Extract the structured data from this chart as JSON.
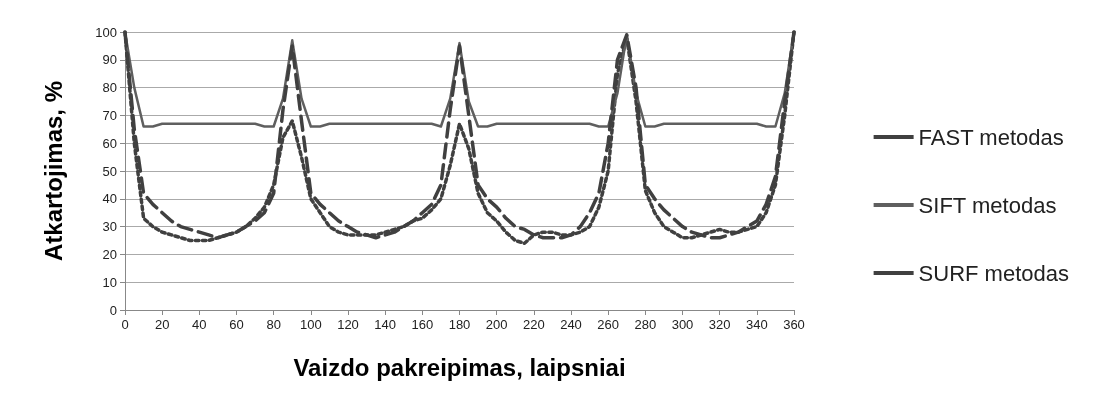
{
  "chart_data": {
    "type": "line",
    "xlabel": "Vaizdo pakreipimas, laipsniai",
    "ylabel": "Atkartojimas, %",
    "x": [
      0,
      5,
      10,
      15,
      20,
      25,
      30,
      35,
      40,
      45,
      50,
      55,
      60,
      65,
      70,
      75,
      80,
      85,
      90,
      95,
      100,
      105,
      110,
      115,
      120,
      125,
      130,
      135,
      140,
      145,
      150,
      155,
      160,
      165,
      170,
      175,
      180,
      185,
      190,
      195,
      200,
      205,
      210,
      215,
      220,
      225,
      230,
      235,
      240,
      245,
      250,
      255,
      260,
      265,
      270,
      275,
      280,
      285,
      290,
      295,
      300,
      305,
      310,
      315,
      320,
      325,
      330,
      335,
      340,
      345,
      350,
      355,
      360
    ],
    "series": [
      {
        "name": "FAST metodas",
        "color": "#404040",
        "line_style": "dotted",
        "values": [
          100,
          60,
          33,
          30,
          28,
          27,
          26,
          25,
          25,
          25,
          26,
          27,
          28,
          30,
          33,
          37,
          45,
          62,
          68,
          55,
          40,
          35,
          30,
          28,
          27,
          27,
          27,
          27,
          28,
          29,
          30,
          32,
          33,
          36,
          40,
          52,
          67,
          58,
          42,
          35,
          32,
          28,
          25,
          24,
          27,
          28,
          28,
          27,
          27,
          28,
          30,
          37,
          50,
          85,
          98,
          75,
          43,
          35,
          30,
          28,
          26,
          26,
          27,
          28,
          29,
          28,
          28,
          29,
          30,
          35,
          45,
          70,
          100
        ]
      },
      {
        "name": "SIFT metodas",
        "color": "#5f5f5f",
        "line_style": "solid",
        "values": [
          100,
          80,
          66,
          66,
          67,
          67,
          67,
          67,
          67,
          67,
          67,
          67,
          67,
          67,
          67,
          66,
          66,
          76,
          97,
          76,
          66,
          66,
          67,
          67,
          67,
          67,
          67,
          67,
          67,
          67,
          67,
          67,
          67,
          67,
          66,
          76,
          96,
          75,
          66,
          66,
          67,
          67,
          67,
          67,
          67,
          67,
          67,
          67,
          67,
          67,
          67,
          66,
          66,
          78,
          99,
          78,
          66,
          66,
          67,
          67,
          67,
          67,
          67,
          67,
          67,
          67,
          67,
          67,
          67,
          66,
          66,
          78,
          100
        ]
      },
      {
        "name": "SURF metodas",
        "color": "#404040",
        "line_style": "dashed",
        "values": [
          100,
          65,
          42,
          38,
          35,
          32,
          30,
          29,
          28,
          27,
          26,
          27,
          28,
          30,
          32,
          35,
          42,
          72,
          95,
          68,
          42,
          38,
          35,
          32,
          30,
          28,
          27,
          26,
          27,
          28,
          30,
          32,
          35,
          38,
          45,
          72,
          95,
          70,
          45,
          40,
          37,
          33,
          30,
          29,
          27,
          26,
          26,
          26,
          27,
          30,
          35,
          42,
          60,
          90,
          99,
          80,
          45,
          40,
          36,
          33,
          30,
          28,
          27,
          26,
          26,
          27,
          28,
          30,
          32,
          38,
          48,
          75,
          100
        ]
      }
    ],
    "xlim": [
      0,
      360
    ],
    "xticks": [
      0,
      20,
      40,
      60,
      80,
      100,
      120,
      140,
      160,
      180,
      200,
      220,
      240,
      260,
      280,
      300,
      320,
      340,
      360
    ],
    "ylim": [
      0,
      100
    ],
    "yticks": [
      0,
      10,
      20,
      30,
      40,
      50,
      60,
      70,
      80,
      90,
      100
    ],
    "grid": "y",
    "legend": "right",
    "marker": "none"
  }
}
